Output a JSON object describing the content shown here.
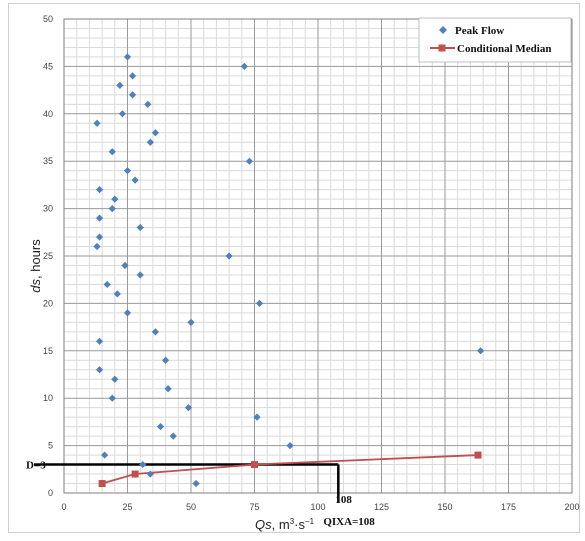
{
  "chart_data": {
    "type": "scatter",
    "xlim": [
      0,
      200
    ],
    "ylim": [
      0,
      50
    ],
    "x_ticks": [
      "0",
      "25",
      "50",
      "75",
      "100",
      "125",
      "150",
      "175",
      "200"
    ],
    "y_ticks": [
      "0",
      "5",
      "10",
      "15",
      "20",
      "25",
      "30",
      "35",
      "40",
      "45",
      "50"
    ],
    "xlabel": {
      "italic": "Qs",
      "rest": ", m",
      "sup1": "3",
      "mid": "·s",
      "sup2": "−1"
    },
    "ylabel": {
      "italic": "ds",
      "rest": ", hours"
    },
    "grid": true,
    "legend_position": "top-right",
    "series": [
      {
        "name": "Peak Flow",
        "marker": "diamond",
        "color": "#4f81bd",
        "points": [
          [
            25,
            46
          ],
          [
            71,
            45
          ],
          [
            27,
            44
          ],
          [
            22,
            43
          ],
          [
            27,
            42
          ],
          [
            33,
            41
          ],
          [
            23,
            40
          ],
          [
            13,
            39
          ],
          [
            36,
            38
          ],
          [
            34,
            37
          ],
          [
            19,
            36
          ],
          [
            73,
            35
          ],
          [
            25,
            34
          ],
          [
            28,
            33
          ],
          [
            14,
            32
          ],
          [
            20,
            31
          ],
          [
            19,
            30
          ],
          [
            14,
            29
          ],
          [
            30,
            28
          ],
          [
            14,
            27
          ],
          [
            13,
            26
          ],
          [
            65,
            25
          ],
          [
            24,
            24
          ],
          [
            30,
            23
          ],
          [
            17,
            22
          ],
          [
            21,
            21
          ],
          [
            77,
            20
          ],
          [
            25,
            19
          ],
          [
            50,
            18
          ],
          [
            36,
            17
          ],
          [
            14,
            16
          ],
          [
            164,
            15
          ],
          [
            40,
            14
          ],
          [
            14,
            13
          ],
          [
            20,
            12
          ],
          [
            41,
            11
          ],
          [
            19,
            10
          ],
          [
            49,
            9
          ],
          [
            76,
            8
          ],
          [
            38,
            7
          ],
          [
            43,
            6
          ],
          [
            89,
            5
          ],
          [
            16,
            4
          ],
          [
            31,
            3
          ],
          [
            34,
            2
          ],
          [
            52,
            1
          ]
        ]
      },
      {
        "name": "Conditional Median",
        "marker": "square",
        "color": "#c0504d",
        "points": [
          [
            15,
            1
          ],
          [
            28,
            2
          ],
          [
            75,
            3
          ],
          [
            163,
            4
          ]
        ]
      }
    ],
    "annotations": {
      "d_value": 3,
      "q_value": 108,
      "d_label": "D=3",
      "q_label": "108",
      "q_name_label": "QIXA=108"
    }
  }
}
